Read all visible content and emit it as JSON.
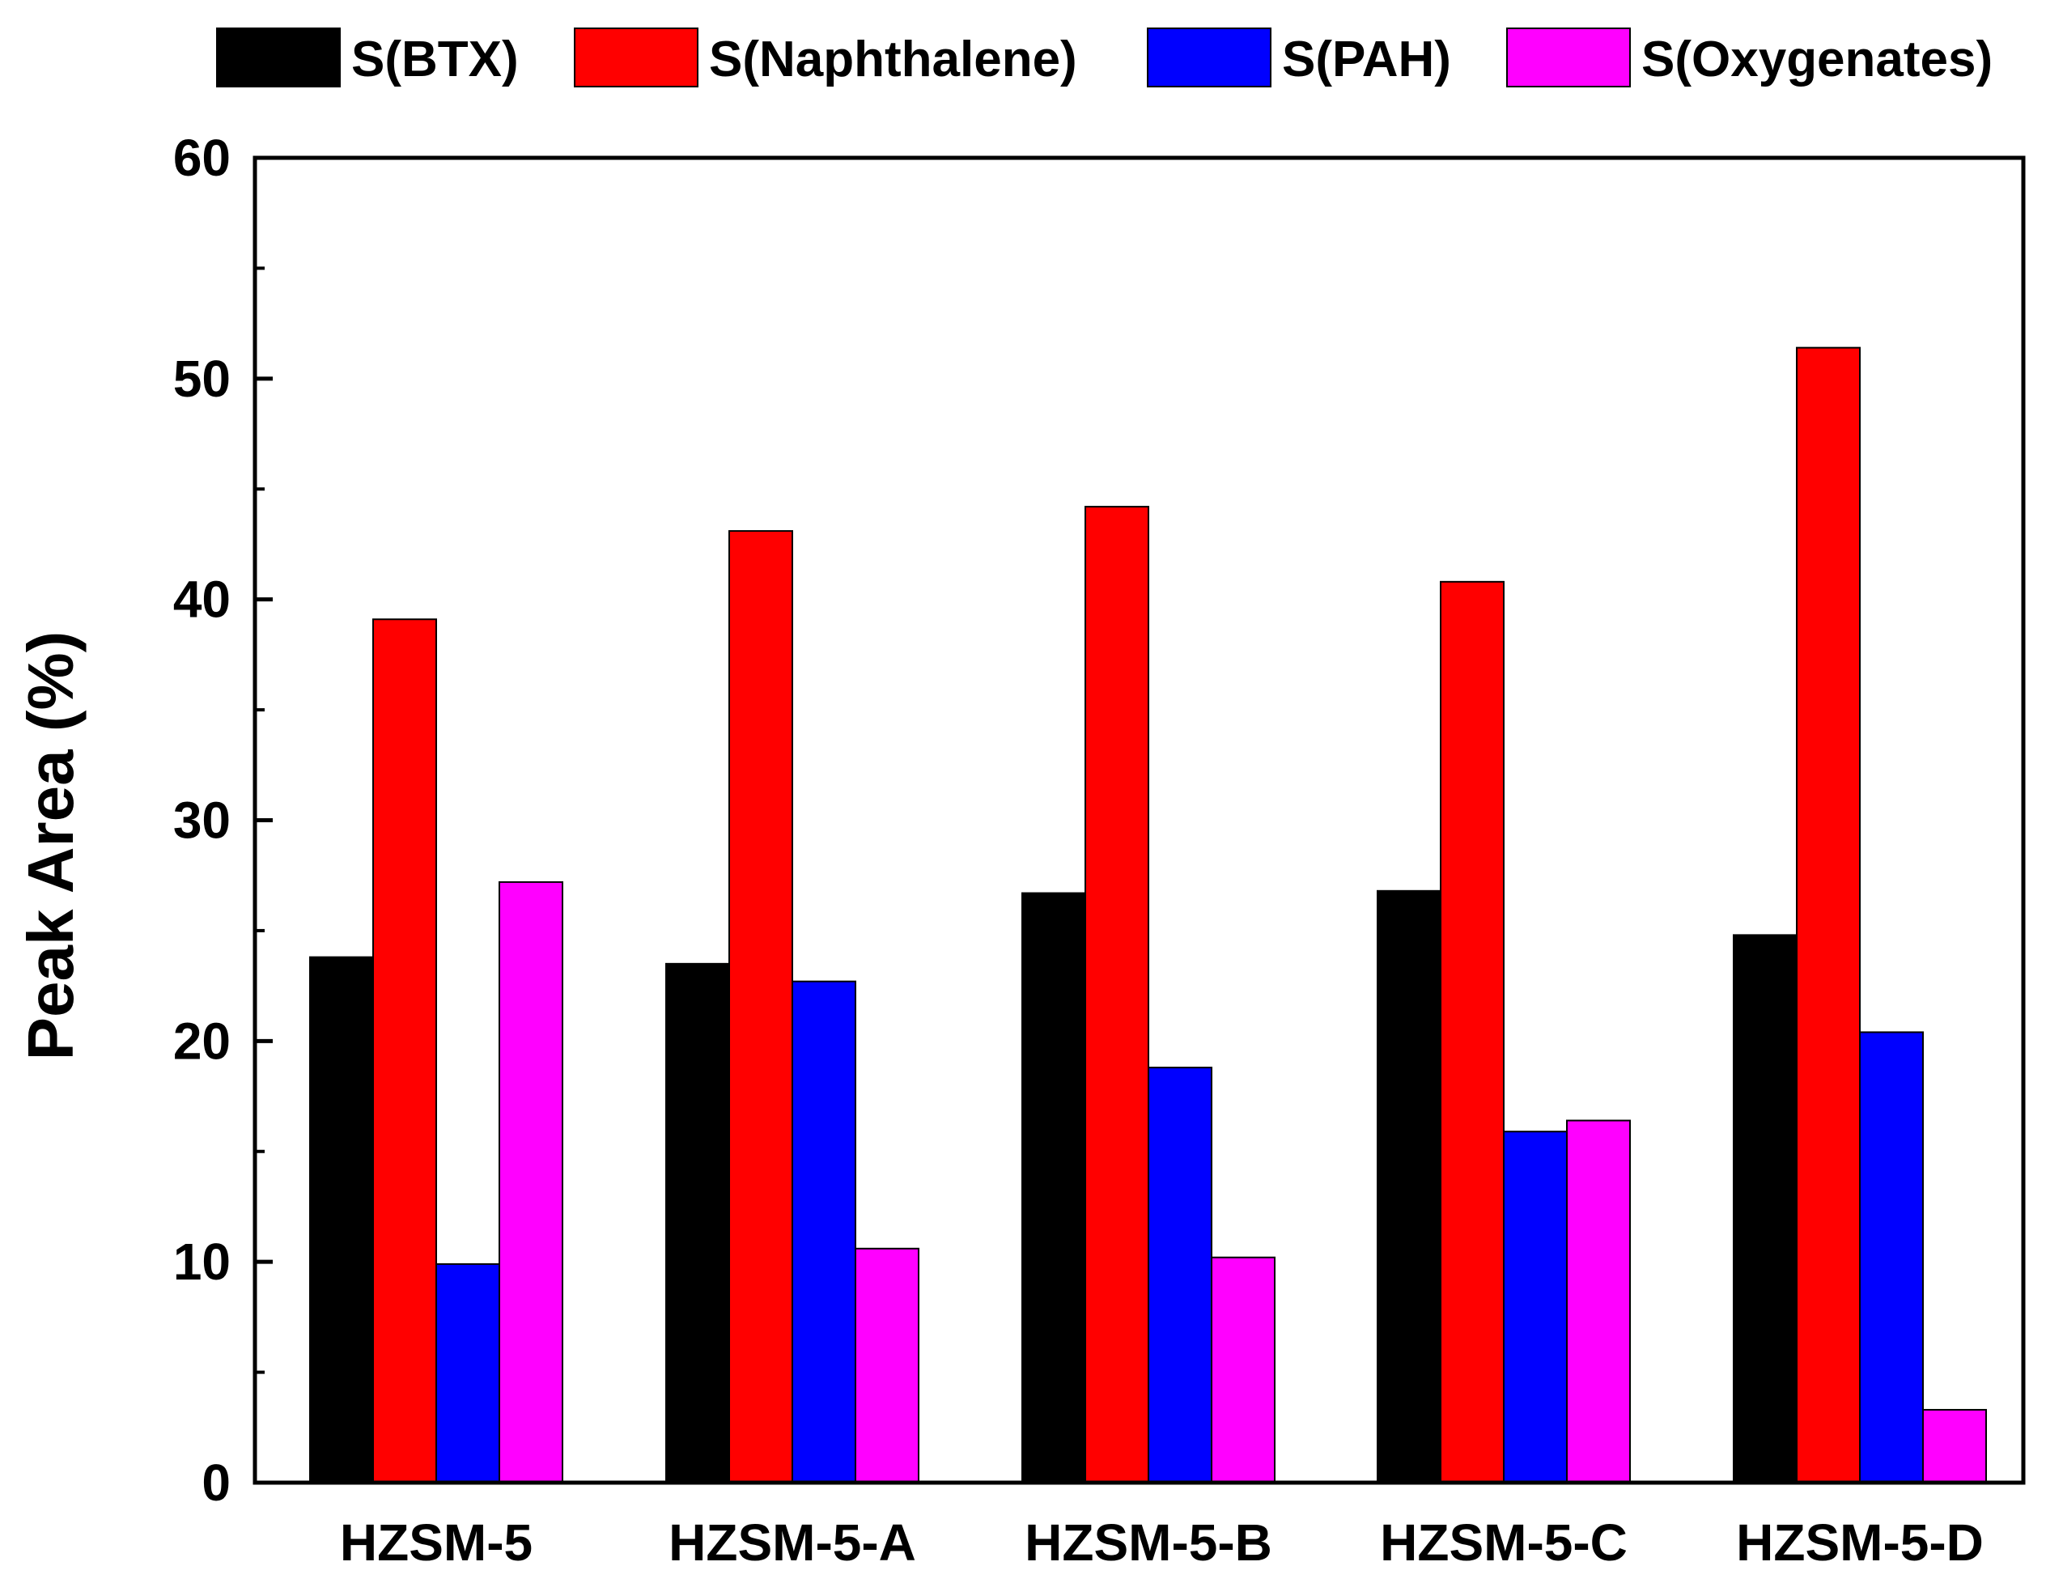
{
  "chart_data": {
    "type": "bar",
    "title": "",
    "xlabel": "",
    "ylabel": "Peak Area (%)",
    "ylim": [
      0,
      60
    ],
    "yticks": [
      0,
      10,
      20,
      30,
      40,
      50,
      60
    ],
    "yminor_step": 5,
    "grid": false,
    "legend_position": "top",
    "categories": [
      "HZSM-5",
      "HZSM-5-A",
      "HZSM-5-B",
      "HZSM-5-C",
      "HZSM-5-D"
    ],
    "series": [
      {
        "name": "S(BTX)",
        "color": "#000000",
        "values": [
          23.8,
          23.5,
          26.7,
          26.8,
          24.8
        ]
      },
      {
        "name": "S(Naphthalene)",
        "color": "#ff0000",
        "values": [
          39.1,
          43.1,
          44.2,
          40.8,
          51.4
        ]
      },
      {
        "name": "S(PAH)",
        "color": "#0000ff",
        "values": [
          9.9,
          22.7,
          18.8,
          15.9,
          20.4
        ]
      },
      {
        "name": "S(Oxygenates)",
        "color": "#ff00ff",
        "values": [
          27.2,
          10.6,
          10.2,
          16.4,
          3.3
        ]
      }
    ]
  }
}
